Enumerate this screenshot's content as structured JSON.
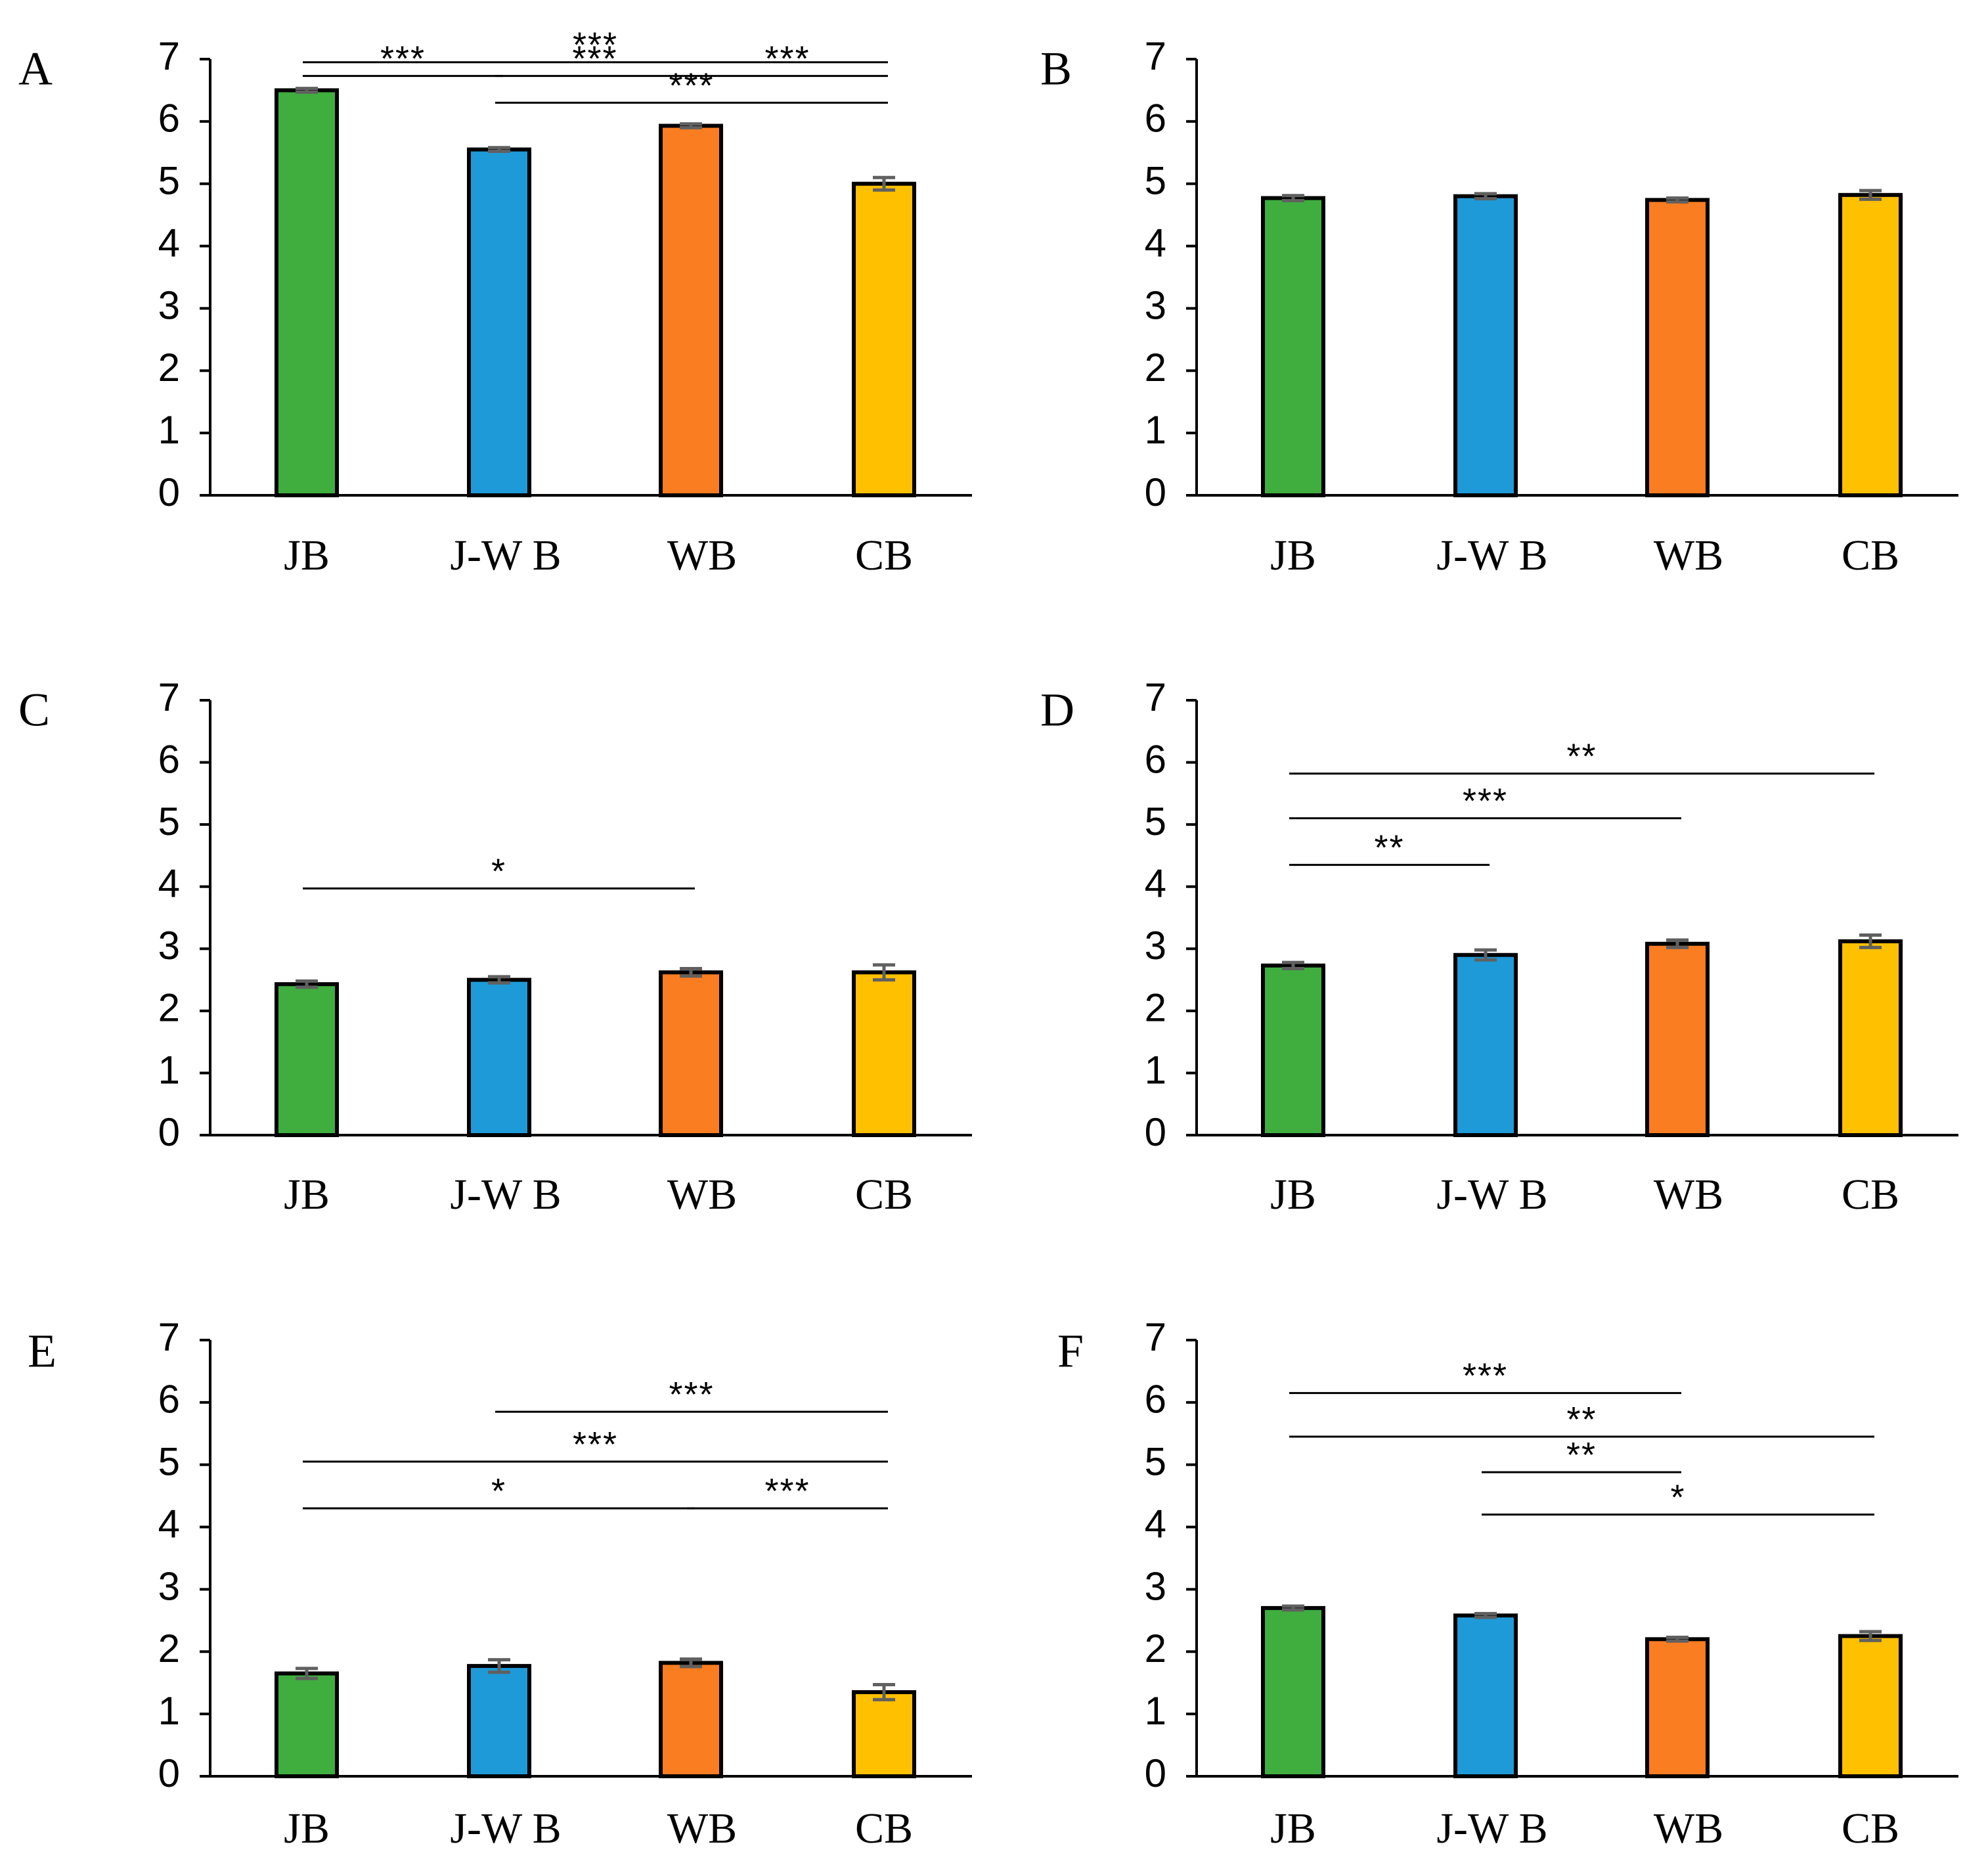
{
  "figure": {
    "colors": {
      "JB": "#3fae3f",
      "J-W B": "#1f9ad8",
      "WB": "#fb7d21",
      "CB": "#ffc000",
      "axis": "#000000",
      "error_bar": "#606060"
    }
  },
  "chart_data": [
    {
      "panel": "A",
      "type": "bar",
      "categories": [
        "JB",
        "J-W B",
        "WB",
        "CB"
      ],
      "values": [
        6.5,
        5.55,
        5.93,
        5.0
      ],
      "errors": [
        0.03,
        0.03,
        0.03,
        0.1
      ],
      "ylim": [
        0,
        7
      ],
      "yticks": [
        "0",
        "1",
        "2",
        "3",
        "4",
        "5",
        "6",
        "7"
      ],
      "significance": [
        {
          "from": 0,
          "to": 3,
          "y": 6.95,
          "label": "***"
        },
        {
          "from": 0,
          "to": 1,
          "y": 6.73,
          "label": "***"
        },
        {
          "from": 1,
          "to": 2,
          "y": 6.73,
          "label": "***"
        },
        {
          "from": 2,
          "to": 3,
          "y": 6.73,
          "label": "***"
        },
        {
          "from": 1,
          "to": 3,
          "y": 6.3,
          "label": "***"
        }
      ]
    },
    {
      "panel": "B",
      "type": "bar",
      "categories": [
        "JB",
        "J-W B",
        "WB",
        "CB"
      ],
      "values": [
        4.77,
        4.8,
        4.74,
        4.82
      ],
      "errors": [
        0.04,
        0.04,
        0.03,
        0.07
      ],
      "ylim": [
        0,
        7
      ],
      "yticks": [
        "0",
        "1",
        "2",
        "3",
        "4",
        "5",
        "6",
        "7"
      ],
      "significance": []
    },
    {
      "panel": "C",
      "type": "bar",
      "categories": [
        "JB",
        "J-W B",
        "WB",
        "CB"
      ],
      "values": [
        2.43,
        2.5,
        2.62,
        2.62
      ],
      "errors": [
        0.05,
        0.05,
        0.06,
        0.12
      ],
      "ylim": [
        0,
        7
      ],
      "yticks": [
        "0",
        "1",
        "2",
        "3",
        "4",
        "5",
        "6",
        "7"
      ],
      "significance": [
        {
          "from": 0,
          "to": 2,
          "y": 3.97,
          "label": "*"
        }
      ]
    },
    {
      "panel": "D",
      "type": "bar",
      "categories": [
        "JB",
        "J-W B",
        "WB",
        "CB"
      ],
      "values": [
        2.73,
        2.9,
        3.08,
        3.12
      ],
      "errors": [
        0.05,
        0.08,
        0.06,
        0.1
      ],
      "ylim": [
        0,
        7
      ],
      "yticks": [
        "0",
        "1",
        "2",
        "3",
        "4",
        "5",
        "6",
        "7"
      ],
      "significance": [
        {
          "from": 0,
          "to": 3,
          "y": 5.82,
          "label": "**"
        },
        {
          "from": 0,
          "to": 2,
          "y": 5.1,
          "label": "***"
        },
        {
          "from": 0,
          "to": 1,
          "y": 4.35,
          "label": "**"
        }
      ]
    },
    {
      "panel": "E",
      "type": "bar",
      "categories": [
        "JB",
        "J-W B",
        "WB",
        "CB"
      ],
      "values": [
        1.65,
        1.77,
        1.82,
        1.35
      ],
      "errors": [
        0.08,
        0.1,
        0.06,
        0.12
      ],
      "ylim": [
        0,
        7
      ],
      "yticks": [
        "0",
        "1",
        "2",
        "3",
        "4",
        "5",
        "6",
        "7"
      ],
      "significance": [
        {
          "from": 1,
          "to": 3,
          "y": 5.85,
          "label": "***"
        },
        {
          "from": 0,
          "to": 3,
          "y": 5.05,
          "label": "***"
        },
        {
          "from": 0,
          "to": 2,
          "y": 4.3,
          "label": "*"
        },
        {
          "from": 2,
          "to": 3,
          "y": 4.3,
          "label": "***"
        }
      ]
    },
    {
      "panel": "F",
      "type": "bar",
      "categories": [
        "JB",
        "J-W B",
        "WB",
        "CB"
      ],
      "values": [
        2.7,
        2.58,
        2.2,
        2.25
      ],
      "errors": [
        0.03,
        0.03,
        0.03,
        0.07
      ],
      "ylim": [
        0,
        7
      ],
      "yticks": [
        "0",
        "1",
        "2",
        "3",
        "4",
        "5",
        "6",
        "7"
      ],
      "significance": [
        {
          "from": 0,
          "to": 2,
          "y": 6.15,
          "label": "***"
        },
        {
          "from": 0,
          "to": 3,
          "y": 5.45,
          "label": "**"
        },
        {
          "from": 1,
          "to": 2,
          "y": 4.88,
          "label": "**"
        },
        {
          "from": 1,
          "to": 3,
          "y": 4.2,
          "label": "*"
        }
      ]
    }
  ]
}
